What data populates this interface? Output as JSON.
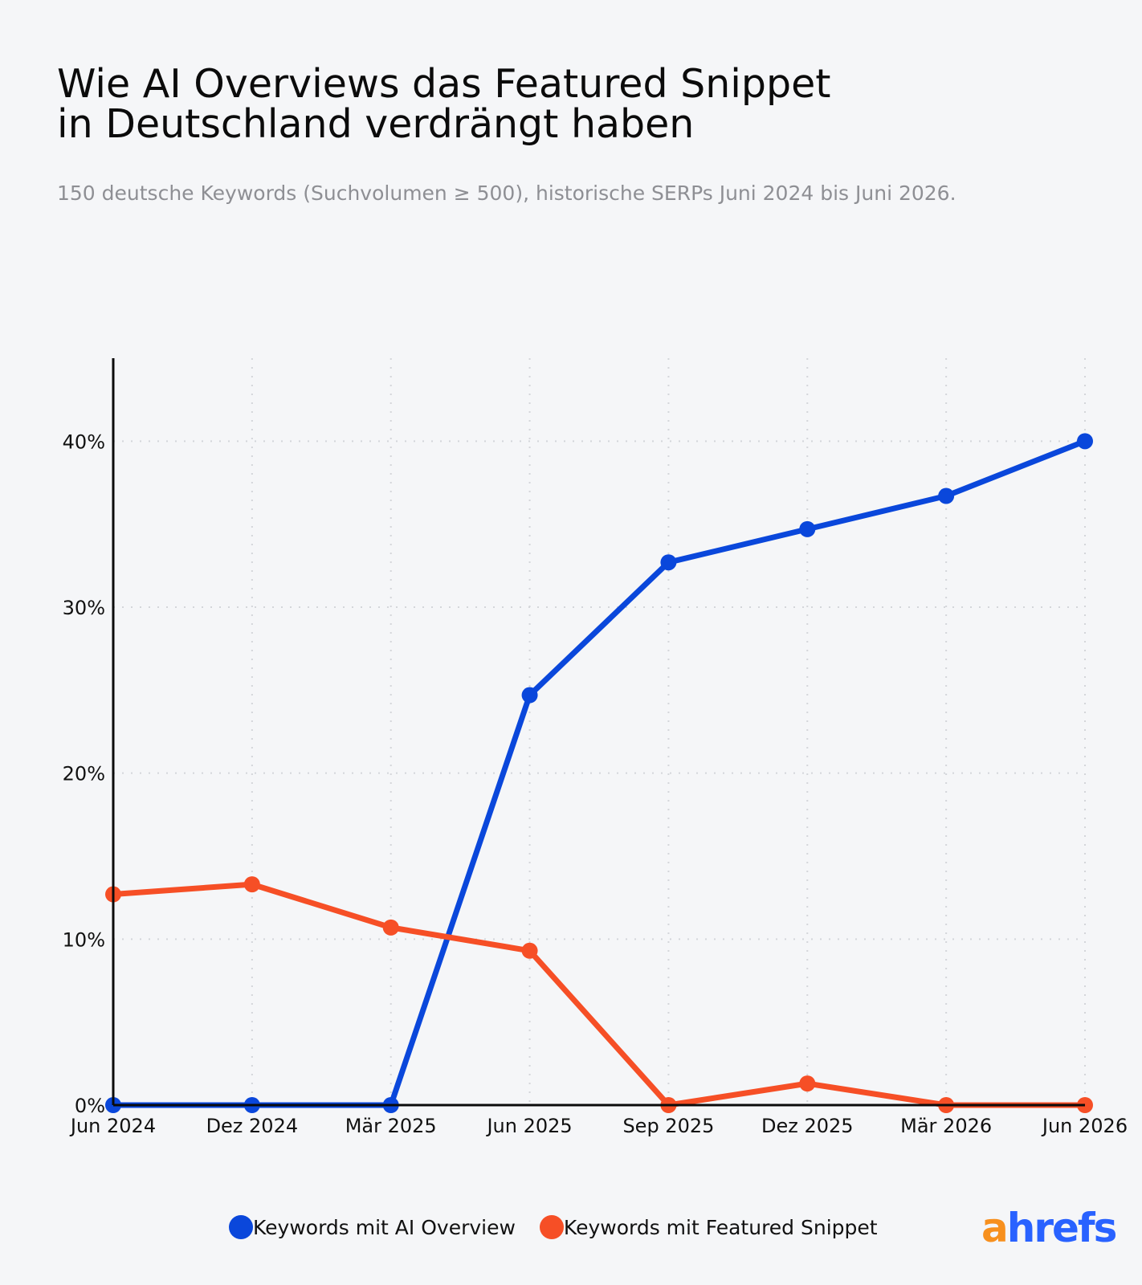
{
  "header": {
    "title_line1": "Wie AI Overviews das Featured Snippet",
    "title_line2": "in Deutschland verdrängt haben",
    "subtitle": "150 deutsche Keywords (Suchvolumen ≥ 500), historische SERPs Juni 2024 bis Juni 2026."
  },
  "brand": {
    "logo_a": "a",
    "logo_rest": "hrefs"
  },
  "chart_data": {
    "type": "line",
    "title": "Wie AI Overviews das Featured Snippet in Deutschland verdrängt haben",
    "subtitle": "150 deutsche Keywords (Suchvolumen ≥ 500), historische SERPs Juni 2024 bis Juni 2026.",
    "xlabel": "",
    "ylabel": "",
    "categories": [
      "Jun 2024",
      "Dez 2024",
      "Mär 2025",
      "Jun 2025",
      "Sep 2025",
      "Dez 2025",
      "Mär 2026",
      "Jun 2026"
    ],
    "ylim": [
      0,
      45
    ],
    "yticks": [
      0,
      10,
      20,
      30,
      40
    ],
    "ytick_labels": [
      "0%",
      "10%",
      "20%",
      "30%",
      "40%"
    ],
    "grid": true,
    "legend_position": "bottom",
    "series": [
      {
        "name": "Keywords mit AI Overview",
        "color": "#0a47db",
        "values": [
          0,
          0,
          0,
          24.7,
          32.7,
          34.7,
          36.7,
          40.0
        ]
      },
      {
        "name": "Keywords mit Featured Snippet",
        "color": "#f64f26",
        "values": [
          12.7,
          13.3,
          10.7,
          9.3,
          0,
          1.3,
          0,
          0
        ]
      }
    ]
  }
}
